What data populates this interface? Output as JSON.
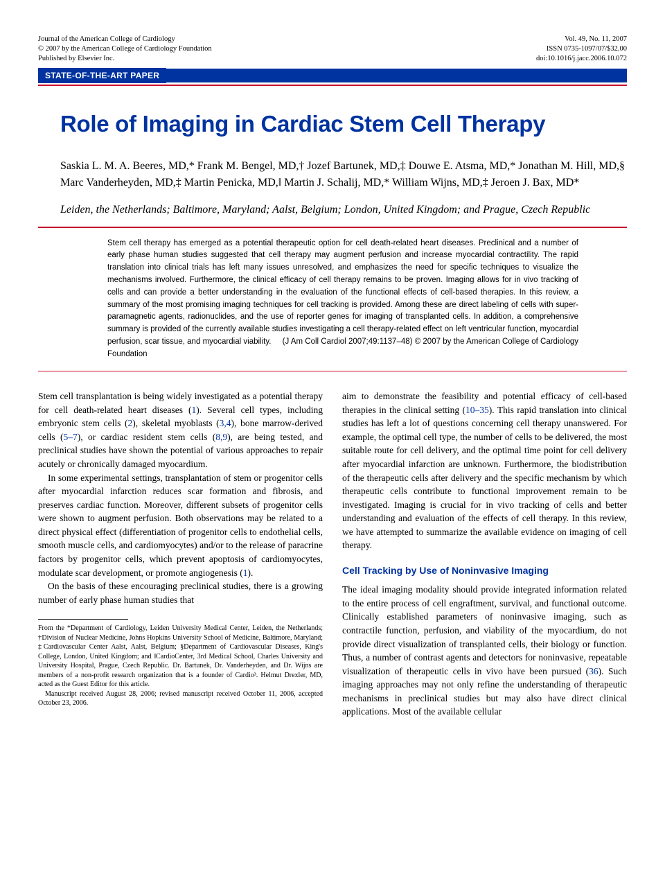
{
  "header": {
    "journal": "Journal of the American College of Cardiology",
    "copyright": "© 2007 by the American College of Cardiology Foundation",
    "publisher": "Published by Elsevier Inc.",
    "volume": "Vol. 49, No. 11, 2007",
    "issn": "ISSN 0735-1097/07/$32.00",
    "doi": "doi:10.1016/j.jacc.2006.10.072"
  },
  "category": "STATE-OF-THE-ART PAPER",
  "title": "Role of Imaging in Cardiac Stem Cell Therapy",
  "authors": "Saskia L. M. A. Beeres, MD,* Frank M. Bengel, MD,† Jozef Bartunek, MD,‡ Douwe E. Atsma, MD,* Jonathan M. Hill, MD,§ Marc Vanderheyden, MD,‡ Martin Penicka, MD,‖ Martin J. Schalij, MD,* William Wijns, MD,‡ Jeroen J. Bax, MD*",
  "affiliations": "Leiden, the Netherlands; Baltimore, Maryland; Aalst, Belgium; London, United Kingdom; and Prague, Czech Republic",
  "abstract": "Stem cell therapy has emerged as a potential therapeutic option for cell death-related heart diseases. Preclinical and a number of early phase human studies suggested that cell therapy may augment perfusion and increase myocardial contractility. The rapid translation into clinical trials has left many issues unresolved, and emphasizes the need for specific techniques to visualize the mechanisms involved. Furthermore, the clinical efficacy of cell therapy remains to be proven. Imaging allows for in vivo tracking of cells and can provide a better understanding in the evaluation of the functional effects of cell-based therapies. In this review, a summary of the most promising imaging techniques for cell tracking is provided. Among these are direct labeling of cells with super-paramagnetic agents, radionuclides, and the use of reporter genes for imaging of transplanted cells. In addition, a comprehensive summary is provided of the currently available studies investigating a cell therapy-related effect on left ventricular function, myocardial perfusion, scar tissue, and myocardial viability.",
  "abstract_cite": "(J Am Coll Cardiol 2007;49:1137–48) © 2007 by the American College of Cardiology Foundation",
  "body": {
    "left": {
      "p1a": "Stem cell transplantation is being widely investigated as a potential therapy for cell death-related heart diseases (",
      "r1": "1",
      "p1b": "). Several cell types, including embryonic stem cells (",
      "r2": "2",
      "p1c": "), skeletal myoblasts (",
      "r34": "3,4",
      "p1d": "), bone marrow-derived cells (",
      "r57": "5–7",
      "p1e": "), or cardiac resident stem cells (",
      "r89": "8,9",
      "p1f": "), are being tested, and preclinical studies have shown the potential of various approaches to repair acutely or chronically damaged myocardium.",
      "p2a": "In some experimental settings, transplantation of stem or progenitor cells after myocardial infarction reduces scar formation and fibrosis, and preserves cardiac function. Moreover, different subsets of progenitor cells were shown to augment perfusion. Both observations may be related to a direct physical effect (differentiation of progenitor cells to endothelial cells, smooth muscle cells, and cardiomyocytes) and/or to the release of paracrine factors by progenitor cells, which prevent apoptosis of cardiomyocytes, modulate scar development, or promote angiogenesis (",
      "r1b": "1",
      "p2b": ").",
      "p3": "On the basis of these encouraging preclinical studies, there is a growing number of early phase human studies that"
    },
    "right": {
      "p1a": "aim to demonstrate the feasibility and potential efficacy of cell-based therapies in the clinical setting (",
      "r1035": "10–35",
      "p1b": "). This rapid translation into clinical studies has left a lot of questions concerning cell therapy unanswered. For example, the optimal cell type, the number of cells to be delivered, the most suitable route for cell delivery, and the optimal time point for cell delivery after myocardial infarction are unknown. Furthermore, the biodistribution of the therapeutic cells after delivery and the specific mechanism by which therapeutic cells contribute to functional improvement remain to be investigated. Imaging is crucial for in vivo tracking of cells and better understanding and evaluation of the effects of cell therapy. In this review, we have attempted to summarize the available evidence on imaging of cell therapy.",
      "section_head": "Cell Tracking by Use of Noninvasive Imaging",
      "p2a": "The ideal imaging modality should provide integrated information related to the entire process of cell engraftment, survival, and functional outcome. Clinically established parameters of noninvasive imaging, such as contractile function, perfusion, and viability of the myocardium, do not provide direct visualization of transplanted cells, their biology or function. Thus, a number of contrast agents and detectors for noninvasive, repeatable visualization of therapeutic cells in vivo have been pursued (",
      "r36": "36",
      "p2b": "). Such imaging approaches may not only refine the understanding of therapeutic mechanisms in preclinical studies but may also have direct clinical applications. Most of the available cellular"
    }
  },
  "footnote": {
    "p1": "From the *Department of Cardiology, Leiden University Medical Center, Leiden, the Netherlands; †Division of Nuclear Medicine, Johns Hopkins University School of Medicine, Baltimore, Maryland; ‡Cardiovascular Center Aalst, Aalst, Belgium; §Department of Cardiovascular Diseases, King's College, London, United Kingdom; and ‖CardioCenter, 3rd Medical School, Charles University and University Hospital, Prague, Czech Republic. Dr. Bartunek, Dr. Vanderheyden, and Dr. Wijns are members of a non-profit research organization that is a founder of Cardio³. Helmut Drexler, MD, acted as the Guest Editor for this article.",
    "p2": "Manuscript received August 28, 2006; revised manuscript received October 11, 2006, accepted October 23, 2006."
  },
  "colors": {
    "blue": "#0033a0",
    "red": "#c8102e",
    "text": "#000000",
    "bg": "#ffffff"
  }
}
